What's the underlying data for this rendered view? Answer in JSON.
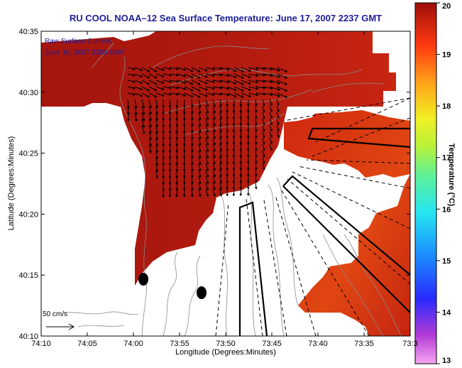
{
  "title": "RU COOL   NOAA–12  Sea Surface Temperature:  June 17, 2007 2237 GMT",
  "legend": {
    "line1": "Raw Surface Current",
    "line2": "June 16, 2007 2300 GMT"
  },
  "scale": {
    "label": "50 cm/s"
  },
  "axes": {
    "xlabel": "Longitude (Degrees:Minutes)",
    "ylabel": "Latitude (Degrees:Minutes)",
    "xticks": [
      "74:10",
      "74:05",
      "74:00",
      "73:55",
      "73:50",
      "73:45",
      "73:40",
      "73:35",
      "73:3"
    ],
    "yticks": [
      "40:35",
      "40:30",
      "40:25",
      "40:20",
      "40:15",
      "40:10"
    ]
  },
  "colorbar": {
    "label": "Temperature (°C)",
    "ticks": [
      "20",
      "19",
      "18",
      "17",
      "16",
      "15",
      "14",
      "13"
    ],
    "range": [
      13,
      20
    ]
  },
  "colors": {
    "title": "#1d1d9a",
    "sst_warm": "#a8160e",
    "sst_mid": "#c8230f",
    "land_contour": "#9a9a9a"
  }
}
